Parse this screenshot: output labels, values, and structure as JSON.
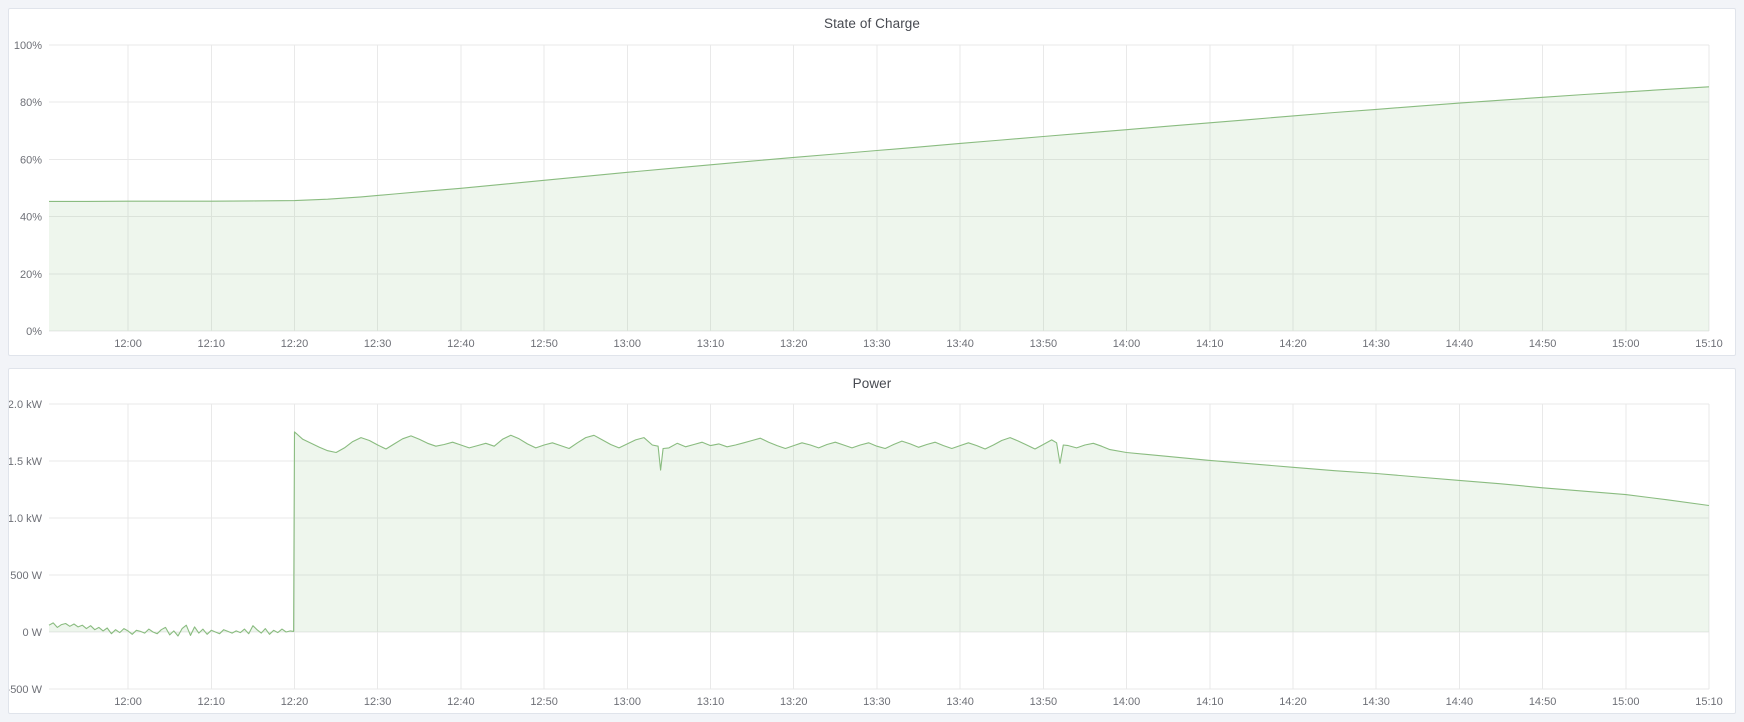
{
  "page": {
    "background": "#f2f4f8",
    "panel_background": "#ffffff",
    "panel_border_color": "#e0e4eb",
    "grid_color": "#e9e9e9",
    "axis_text_color": "#6e7077",
    "title_text_color": "#474a51"
  },
  "chart_data": [
    {
      "type": "area",
      "title": "State of Charge",
      "xlabel": "",
      "ylabel": "",
      "x_unit": "minutes_since_12:00",
      "xlim": [
        -9.5,
        190
      ],
      "ylim": [
        0,
        100
      ],
      "grid": true,
      "legend": "none",
      "line_color": "#8ABC80",
      "fill_color": "rgba(138,188,128,0.14)",
      "x_tick_minutes": [
        0,
        10,
        20,
        30,
        40,
        50,
        60,
        70,
        80,
        90,
        100,
        110,
        120,
        130,
        140,
        150,
        160,
        170,
        180,
        190
      ],
      "x_tick_labels": [
        "12:00",
        "12:10",
        "12:20",
        "12:30",
        "12:40",
        "12:50",
        "13:00",
        "13:10",
        "13:20",
        "13:30",
        "13:40",
        "13:50",
        "14:00",
        "14:10",
        "14:20",
        "14:30",
        "14:40",
        "14:50",
        "15:00",
        "15:10"
      ],
      "y_tick_values": [
        100,
        80,
        60,
        40,
        20,
        0
      ],
      "y_tick_labels": [
        "100%",
        "80%",
        "60%",
        "40%",
        "20%",
        "0%"
      ],
      "series": [
        {
          "name": "State of Charge",
          "points": [
            [
              -9.5,
              45.3
            ],
            [
              -5,
              45.3
            ],
            [
              0,
              45.4
            ],
            [
              5,
              45.4
            ],
            [
              10,
              45.4
            ],
            [
              15,
              45.5
            ],
            [
              20,
              45.6
            ],
            [
              24,
              46.1
            ],
            [
              28,
              46.9
            ],
            [
              32,
              47.9
            ],
            [
              36,
              48.9
            ],
            [
              40,
              49.9
            ],
            [
              45,
              51.3
            ],
            [
              50,
              52.7
            ],
            [
              55,
              54.1
            ],
            [
              60,
              55.5
            ],
            [
              65,
              56.8
            ],
            [
              70,
              58.1
            ],
            [
              75,
              59.4
            ],
            [
              80,
              60.7
            ],
            [
              85,
              61.9
            ],
            [
              90,
              63.1
            ],
            [
              95,
              64.3
            ],
            [
              100,
              65.6
            ],
            [
              105,
              66.8
            ],
            [
              110,
              68.0
            ],
            [
              115,
              69.2
            ],
            [
              120,
              70.4
            ],
            [
              125,
              71.6
            ],
            [
              130,
              72.8
            ],
            [
              135,
              74.0
            ],
            [
              140,
              75.2
            ],
            [
              145,
              76.4
            ],
            [
              150,
              77.5
            ],
            [
              155,
              78.6
            ],
            [
              160,
              79.7
            ],
            [
              165,
              80.7
            ],
            [
              170,
              81.7
            ],
            [
              175,
              82.7
            ],
            [
              180,
              83.6
            ],
            [
              185,
              84.5
            ],
            [
              190,
              85.4
            ]
          ]
        }
      ]
    },
    {
      "type": "area",
      "title": "Power",
      "xlabel": "",
      "ylabel": "",
      "x_unit": "minutes_since_12:00",
      "xlim": [
        -9.5,
        190
      ],
      "ylim": [
        -500,
        2000
      ],
      "grid": true,
      "legend": "none",
      "line_color": "#8ABC80",
      "fill_color": "rgba(138,188,128,0.14)",
      "x_tick_minutes": [
        0,
        10,
        20,
        30,
        40,
        50,
        60,
        70,
        80,
        90,
        100,
        110,
        120,
        130,
        140,
        150,
        160,
        170,
        180,
        190
      ],
      "x_tick_labels": [
        "12:00",
        "12:10",
        "12:20",
        "12:30",
        "12:40",
        "12:50",
        "13:00",
        "13:10",
        "13:20",
        "13:30",
        "13:40",
        "13:50",
        "14:00",
        "14:10",
        "14:20",
        "14:30",
        "14:40",
        "14:50",
        "15:00",
        "15:10"
      ],
      "y_tick_values": [
        2000,
        1500,
        1000,
        500,
        0,
        -500
      ],
      "y_tick_labels": [
        "2.0 kW",
        "1.5 kW",
        "1.0 kW",
        "500 W",
        "0 W",
        "-500 W"
      ],
      "series": [
        {
          "name": "Power",
          "points": [
            [
              -9.5,
              60
            ],
            [
              -9,
              80
            ],
            [
              -8.5,
              40
            ],
            [
              -8,
              65
            ],
            [
              -7.5,
              75
            ],
            [
              -7,
              50
            ],
            [
              -6.5,
              70
            ],
            [
              -6,
              45
            ],
            [
              -5.5,
              60
            ],
            [
              -5,
              30
            ],
            [
              -4.5,
              55
            ],
            [
              -4,
              20
            ],
            [
              -3.5,
              40
            ],
            [
              -3,
              10
            ],
            [
              -2.5,
              35
            ],
            [
              -2,
              -15
            ],
            [
              -1.5,
              20
            ],
            [
              -1,
              -5
            ],
            [
              -0.5,
              30
            ],
            [
              0,
              10
            ],
            [
              0.5,
              -20
            ],
            [
              1,
              15
            ],
            [
              1.5,
              5
            ],
            [
              2,
              -10
            ],
            [
              2.5,
              25
            ],
            [
              3,
              0
            ],
            [
              3.5,
              -15
            ],
            [
              4,
              20
            ],
            [
              4.5,
              40
            ],
            [
              5,
              -25
            ],
            [
              5.5,
              10
            ],
            [
              6,
              -35
            ],
            [
              6.5,
              30
            ],
            [
              7,
              60
            ],
            [
              7.5,
              -30
            ],
            [
              8,
              45
            ],
            [
              8.5,
              -10
            ],
            [
              9,
              25
            ],
            [
              9.5,
              -20
            ],
            [
              10,
              15
            ],
            [
              10.5,
              0
            ],
            [
              11,
              -15
            ],
            [
              11.5,
              20
            ],
            [
              12,
              5
            ],
            [
              12.5,
              -10
            ],
            [
              13,
              10
            ],
            [
              13.5,
              -5
            ],
            [
              14,
              25
            ],
            [
              14.5,
              -15
            ],
            [
              15,
              55
            ],
            [
              15.5,
              20
            ],
            [
              16,
              -10
            ],
            [
              16.5,
              30
            ],
            [
              17,
              -20
            ],
            [
              17.5,
              15
            ],
            [
              18,
              -5
            ],
            [
              18.5,
              25
            ],
            [
              19,
              0
            ],
            [
              19.5,
              10
            ],
            [
              19.9,
              5
            ],
            [
              20,
              1755
            ],
            [
              21,
              1690
            ],
            [
              22,
              1655
            ],
            [
              23,
              1620
            ],
            [
              24,
              1590
            ],
            [
              25,
              1575
            ],
            [
              26,
              1615
            ],
            [
              27,
              1670
            ],
            [
              28,
              1705
            ],
            [
              29,
              1680
            ],
            [
              30,
              1640
            ],
            [
              31,
              1605
            ],
            [
              32,
              1650
            ],
            [
              33,
              1695
            ],
            [
              34,
              1720
            ],
            [
              35,
              1690
            ],
            [
              36,
              1655
            ],
            [
              37,
              1630
            ],
            [
              38,
              1645
            ],
            [
              39,
              1665
            ],
            [
              40,
              1640
            ],
            [
              41,
              1615
            ],
            [
              42,
              1635
            ],
            [
              43,
              1655
            ],
            [
              44,
              1630
            ],
            [
              45,
              1690
            ],
            [
              46,
              1725
            ],
            [
              47,
              1695
            ],
            [
              48,
              1650
            ],
            [
              49,
              1615
            ],
            [
              50,
              1640
            ],
            [
              51,
              1660
            ],
            [
              52,
              1635
            ],
            [
              53,
              1610
            ],
            [
              54,
              1660
            ],
            [
              55,
              1705
            ],
            [
              56,
              1725
            ],
            [
              57,
              1685
            ],
            [
              58,
              1645
            ],
            [
              59,
              1615
            ],
            [
              60,
              1650
            ],
            [
              61,
              1685
            ],
            [
              62,
              1705
            ],
            [
              63,
              1640
            ],
            [
              63.7,
              1630
            ],
            [
              64,
              1420
            ],
            [
              64.3,
              1610
            ],
            [
              65,
              1615
            ],
            [
              66,
              1655
            ],
            [
              67,
              1625
            ],
            [
              68,
              1645
            ],
            [
              69,
              1665
            ],
            [
              70,
              1635
            ],
            [
              71,
              1650
            ],
            [
              72,
              1625
            ],
            [
              73,
              1640
            ],
            [
              74,
              1660
            ],
            [
              75,
              1680
            ],
            [
              76,
              1700
            ],
            [
              77,
              1665
            ],
            [
              78,
              1635
            ],
            [
              79,
              1610
            ],
            [
              80,
              1635
            ],
            [
              81,
              1660
            ],
            [
              82,
              1640
            ],
            [
              83,
              1615
            ],
            [
              84,
              1645
            ],
            [
              85,
              1665
            ],
            [
              86,
              1640
            ],
            [
              87,
              1615
            ],
            [
              88,
              1640
            ],
            [
              89,
              1660
            ],
            [
              90,
              1630
            ],
            [
              91,
              1610
            ],
            [
              92,
              1645
            ],
            [
              93,
              1675
            ],
            [
              94,
              1650
            ],
            [
              95,
              1620
            ],
            [
              96,
              1645
            ],
            [
              97,
              1665
            ],
            [
              98,
              1635
            ],
            [
              99,
              1610
            ],
            [
              100,
              1635
            ],
            [
              101,
              1660
            ],
            [
              102,
              1635
            ],
            [
              103,
              1605
            ],
            [
              104,
              1640
            ],
            [
              105,
              1680
            ],
            [
              106,
              1705
            ],
            [
              107,
              1675
            ],
            [
              108,
              1640
            ],
            [
              109,
              1605
            ],
            [
              110,
              1645
            ],
            [
              111,
              1685
            ],
            [
              111.6,
              1660
            ],
            [
              112,
              1480
            ],
            [
              112.4,
              1640
            ],
            [
              113,
              1635
            ],
            [
              114,
              1615
            ],
            [
              115,
              1640
            ],
            [
              116,
              1655
            ],
            [
              117,
              1630
            ],
            [
              118,
              1600
            ],
            [
              120,
              1575
            ],
            [
              125,
              1540
            ],
            [
              130,
              1505
            ],
            [
              135,
              1475
            ],
            [
              140,
              1445
            ],
            [
              145,
              1415
            ],
            [
              150,
              1390
            ],
            [
              155,
              1360
            ],
            [
              160,
              1330
            ],
            [
              165,
              1300
            ],
            [
              170,
              1265
            ],
            [
              175,
              1235
            ],
            [
              180,
              1205
            ],
            [
              185,
              1160
            ],
            [
              190,
              1110
            ]
          ]
        }
      ]
    }
  ]
}
